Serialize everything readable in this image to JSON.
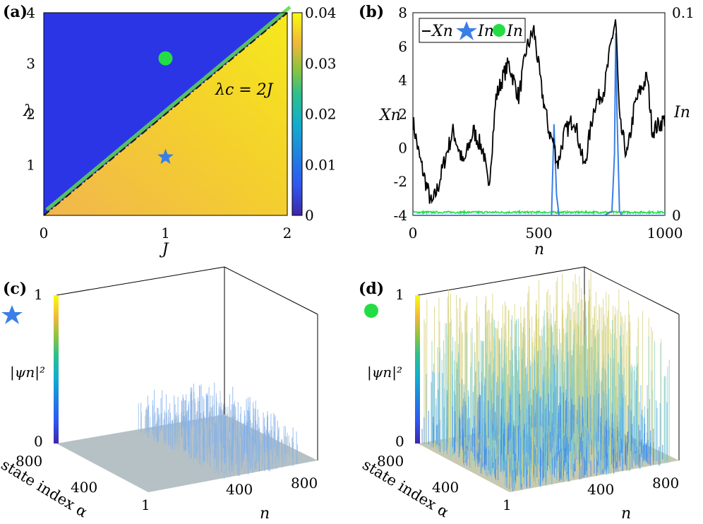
{
  "chart_data": [
    {
      "panel": "(a)",
      "type": "heatmap",
      "xlabel": "J",
      "ylabel": "λ",
      "xlim": [
        0,
        2
      ],
      "ylim": [
        0,
        4
      ],
      "xticks": [
        "0",
        "1",
        "2"
      ],
      "yticks": [
        "1",
        "2",
        "3",
        "4"
      ],
      "colorbar_ticks": [
        "0",
        "0.01",
        "0.02",
        "0.03",
        "0.04"
      ],
      "colorbar_range": [
        0,
        0.04
      ],
      "annotation": "λc = 2J",
      "boundary": {
        "x": [
          0,
          2
        ],
        "y": [
          0,
          4
        ]
      },
      "markers": [
        {
          "name": "star",
          "x": 1.0,
          "y": 1.15,
          "color": "#3a7fe6"
        },
        {
          "name": "circle",
          "x": 1.0,
          "y": 3.1,
          "color": "#22dd44"
        }
      ],
      "region_values": {
        "below_line": 0.037,
        "above_line": 0.0
      }
    },
    {
      "panel": "(b)",
      "type": "line",
      "xlabel": "n",
      "ylabel_left": "Xn",
      "ylabel_right": "In",
      "xlim": [
        0,
        1000
      ],
      "ylim_left": [
        -4,
        8
      ],
      "ylim_right": [
        0,
        0.1
      ],
      "xticks": [
        "0",
        "500",
        "1000"
      ],
      "yticks_left": [
        "-4",
        "-2",
        "0",
        "2",
        "4",
        "6",
        "8"
      ],
      "yticks_right": [
        "0",
        "0.1"
      ],
      "legend": [
        "Xn",
        "In",
        "In"
      ],
      "series": [
        {
          "name": "Xn",
          "color": "#000000",
          "x": [
            0,
            25,
            50,
            75,
            100,
            130,
            160,
            200,
            240,
            280,
            300,
            330,
            360,
            380,
            420,
            450,
            480,
            510,
            540,
            560,
            575,
            600,
            640,
            680,
            720,
            760,
            790,
            805,
            820,
            850,
            880,
            900,
            930,
            950,
            1000
          ],
          "y": [
            1.6,
            -0.5,
            -2.0,
            -3.4,
            -2.3,
            -0.5,
            1.0,
            -1.0,
            1.0,
            -0.2,
            -2.5,
            3.0,
            4.3,
            5.0,
            3.0,
            5.8,
            7.0,
            3.5,
            1.0,
            0.2,
            -1.0,
            0.8,
            1.8,
            -1.2,
            2.5,
            3.5,
            6.5,
            7.6,
            1.5,
            -0.5,
            2.5,
            3.3,
            4.2,
            1.0,
            1.7
          ]
        },
        {
          "name": "In (star)",
          "color": "#3a7fe6",
          "x": [
            0,
            550,
            560,
            570,
            580,
            760,
            790,
            800,
            805,
            810,
            820,
            830,
            1000
          ],
          "y": [
            0,
            0,
            0.045,
            0.01,
            0,
            0,
            0.002,
            0.03,
            0.09,
            0.05,
            0.002,
            0,
            0
          ]
        },
        {
          "name": "In (circle)",
          "color": "#22dd44",
          "x": [
            0,
            1000
          ],
          "y": [
            0.001,
            0.001
          ]
        }
      ]
    },
    {
      "panel": "(c)",
      "type": "surface3d",
      "marker": "star",
      "xlabel": "n",
      "ylabel": "state index α",
      "zlabel": "|ψn|²",
      "xticks": [
        "400",
        "800"
      ],
      "yticks": [
        "800",
        "400",
        "1"
      ],
      "zticks": [
        "0",
        "1"
      ]
    },
    {
      "panel": "(d)",
      "type": "surface3d",
      "marker": "circle",
      "xlabel": "n",
      "ylabel": "state index α",
      "zlabel": "|ψn|²",
      "xticks": [
        "400",
        "800"
      ],
      "yticks": [
        "800",
        "400",
        "1"
      ],
      "zticks": [
        "0",
        "1"
      ]
    }
  ]
}
